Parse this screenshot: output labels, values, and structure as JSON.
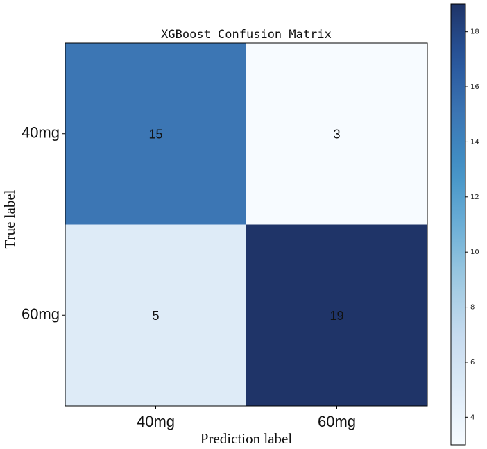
{
  "chart_data": {
    "type": "heatmap",
    "title": "XGBoost Confusion Matrix",
    "xlabel": "Prediction label",
    "ylabel": "True label",
    "x_categories": [
      "40mg",
      "60mg"
    ],
    "y_categories": [
      "40mg",
      "60mg"
    ],
    "values": [
      [
        15,
        3
      ],
      [
        5,
        19
      ]
    ],
    "colormap": "Blues",
    "colorbar": {
      "range": [
        3,
        19
      ],
      "ticks": [
        4,
        6,
        8,
        10,
        12,
        14,
        16,
        18
      ]
    },
    "grid": false
  }
}
